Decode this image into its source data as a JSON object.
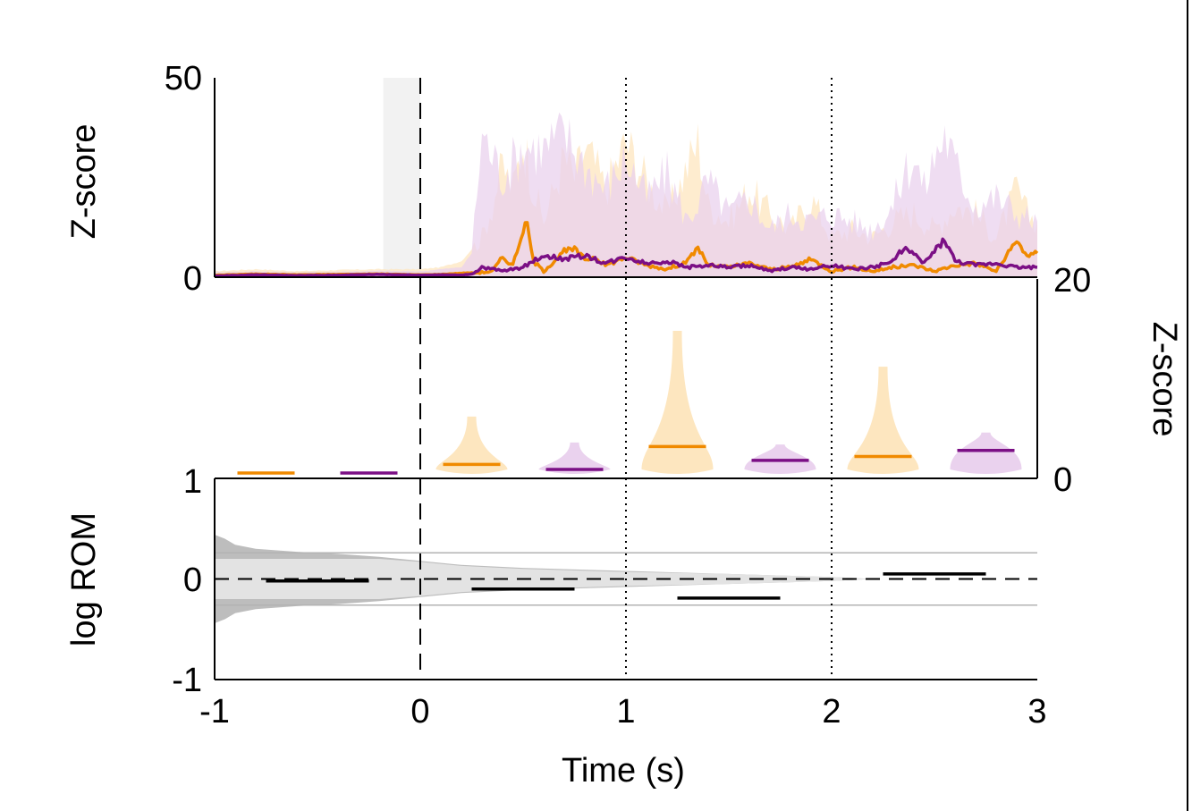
{
  "chart_data": {
    "type": "composite",
    "x_axis": {
      "label": "Time (s)",
      "range": [
        -1,
        3
      ],
      "ticks": [
        -1,
        0,
        1,
        2,
        3
      ],
      "tick_labels": [
        "-1",
        "0",
        "1",
        "2",
        "3"
      ],
      "event_line": {
        "x": 0,
        "style": "dashed"
      },
      "boundary_lines": [
        {
          "x": 1,
          "style": "dotted"
        },
        {
          "x": 2,
          "style": "dotted"
        }
      ]
    },
    "panels": [
      {
        "name": "z-score-traces",
        "type": "line",
        "ylabel": "Z-score",
        "ylim": [
          0,
          50
        ],
        "ytick_labels": [
          "0",
          "50"
        ],
        "shaded_window": {
          "x0": -0.18,
          "x1": 0.0,
          "color": "#f2f2f2"
        },
        "series": [
          {
            "name": "orange",
            "color": "#f08a00",
            "band_color": "#fde6bf",
            "x": [
              -1.0,
              -0.8,
              -0.6,
              -0.4,
              -0.2,
              0.0,
              0.1,
              0.2,
              0.3,
              0.35,
              0.4,
              0.45,
              0.5,
              0.52,
              0.55,
              0.6,
              0.7,
              0.75,
              0.8,
              0.85,
              0.9,
              1.0,
              1.1,
              1.2,
              1.3,
              1.35,
              1.4,
              1.5,
              1.6,
              1.7,
              1.8,
              1.9,
              2.0,
              2.1,
              2.2,
              2.3,
              2.4,
              2.5,
              2.6,
              2.7,
              2.8,
              2.9,
              2.95,
              3.0
            ],
            "values": [
              0.5,
              0.8,
              0.6,
              0.7,
              0.8,
              0.6,
              0.7,
              1.0,
              1.2,
              1.5,
              5.0,
              3.0,
              12.0,
              13.0,
              4.0,
              1.5,
              6.5,
              7.0,
              4.5,
              5.0,
              3.0,
              5.0,
              3.0,
              2.0,
              4.0,
              7.5,
              3.0,
              2.5,
              3.5,
              2.0,
              2.5,
              4.5,
              1.5,
              2.5,
              1.5,
              2.5,
              3.0,
              1.5,
              3.0,
              3.5,
              1.5,
              9.0,
              5.5,
              6.0
            ],
            "band_upper": [
              1.5,
              2.0,
              1.5,
              1.8,
              2.0,
              2.0,
              2.5,
              4.0,
              10.0,
              18.0,
              28.0,
              22.0,
              34.0,
              30.0,
              22.0,
              14.0,
              30.0,
              25.0,
              32.0,
              28.0,
              22.0,
              34.0,
              24.0,
              16.0,
              28.0,
              34.0,
              18.0,
              14.0,
              22.0,
              16.0,
              12.0,
              20.0,
              10.0,
              12.0,
              10.0,
              14.0,
              16.0,
              12.0,
              18.0,
              16.0,
              10.0,
              22.0,
              16.0,
              14.0
            ]
          },
          {
            "name": "purple",
            "color": "#7b0f85",
            "band_color": "#ead2ee",
            "x": [
              -1.0,
              -0.8,
              -0.6,
              -0.4,
              -0.2,
              0.0,
              0.1,
              0.2,
              0.25,
              0.3,
              0.4,
              0.5,
              0.6,
              0.7,
              0.8,
              0.9,
              1.0,
              1.1,
              1.2,
              1.3,
              1.4,
              1.5,
              1.6,
              1.7,
              1.8,
              1.9,
              2.0,
              2.1,
              2.2,
              2.3,
              2.35,
              2.4,
              2.45,
              2.5,
              2.55,
              2.6,
              2.7,
              2.8,
              2.9,
              3.0
            ],
            "values": [
              0.3,
              0.6,
              0.4,
              0.5,
              0.7,
              0.5,
              0.6,
              0.5,
              0.8,
              2.5,
              1.5,
              2.5,
              5.5,
              4.5,
              5.5,
              3.5,
              5.0,
              3.5,
              4.0,
              2.5,
              3.0,
              2.5,
              3.0,
              1.5,
              2.5,
              2.0,
              3.0,
              2.0,
              2.5,
              4.0,
              7.5,
              5.5,
              3.5,
              6.5,
              9.5,
              4.0,
              3.0,
              3.5,
              2.5,
              2.5
            ],
            "band_upper": [
              1.2,
              1.5,
              1.2,
              1.4,
              1.6,
              1.5,
              2.0,
              2.5,
              6.0,
              36.0,
              25.0,
              33.0,
              32.0,
              36.0,
              28.0,
              22.0,
              30.0,
              20.0,
              26.0,
              14.0,
              24.0,
              16.0,
              20.0,
              12.0,
              16.0,
              14.0,
              16.0,
              14.0,
              12.0,
              18.0,
              26.0,
              30.0,
              22.0,
              30.0,
              36.0,
              28.0,
              18.0,
              20.0,
              16.0,
              14.0
            ]
          }
        ]
      },
      {
        "name": "window-violins",
        "type": "violin",
        "ylabel": "Z-score",
        "ylim": [
          0,
          20
        ],
        "ytick_labels": [
          "0",
          "20"
        ],
        "y_axis_side": "right",
        "groups": [
          {
            "series": "orange",
            "x_center": -0.75,
            "median": 0.1,
            "max": 0.1,
            "color": "#f08a00",
            "fill": "#fde6bf"
          },
          {
            "series": "purple",
            "x_center": -0.25,
            "median": 0.1,
            "max": 0.1,
            "color": "#7b0f85",
            "fill": "#ead2ee"
          },
          {
            "series": "orange",
            "x_center": 0.25,
            "median": 1.4,
            "max": 6.2,
            "color": "#f08a00",
            "fill": "#fde6bf"
          },
          {
            "series": "purple",
            "x_center": 0.75,
            "median": 0.9,
            "max": 3.6,
            "color": "#7b0f85",
            "fill": "#ead2ee"
          },
          {
            "series": "orange",
            "x_center": 1.25,
            "median": 3.2,
            "max": 14.8,
            "color": "#f08a00",
            "fill": "#fde6bf"
          },
          {
            "series": "purple",
            "x_center": 1.75,
            "median": 1.8,
            "max": 3.4,
            "color": "#7b0f85",
            "fill": "#ead2ee"
          },
          {
            "series": "orange",
            "x_center": 2.25,
            "median": 2.2,
            "max": 11.2,
            "color": "#f08a00",
            "fill": "#fde6bf"
          },
          {
            "series": "purple",
            "x_center": 2.75,
            "median": 2.8,
            "max": 4.6,
            "color": "#7b0f85",
            "fill": "#ead2ee"
          }
        ]
      },
      {
        "name": "log-rom",
        "type": "line",
        "ylabel": "log ROM",
        "ylim": [
          -1,
          1
        ],
        "ytick_labels": [
          "-1",
          "0",
          "1"
        ],
        "reference_lines": [
          {
            "y": 0,
            "style": "dashed",
            "color": "#000000"
          },
          {
            "y": 0.26,
            "style": "solid",
            "color": "#b3b3b3"
          },
          {
            "y": -0.26,
            "style": "solid",
            "color": "#b3b3b3"
          }
        ],
        "null_band": {
          "x": [
            -1.0,
            -0.95,
            -0.9,
            -0.8,
            -0.6,
            -0.4,
            -0.2,
            0.0,
            0.2,
            0.5,
            1.0,
            1.5,
            2.0,
            2.2
          ],
          "outer": [
            0.44,
            0.4,
            0.34,
            0.3,
            0.27,
            0.25,
            0.22,
            0.18,
            0.14,
            0.11,
            0.08,
            0.05,
            0.02,
            0.0
          ],
          "inner": [
            0.2,
            0.2,
            0.2,
            0.2,
            0.2,
            0.2,
            0.2,
            0.17,
            0.13,
            0.1,
            0.07,
            0.05,
            0.02,
            0.0
          ]
        },
        "segments": [
          {
            "x0": -0.75,
            "x1": -0.25,
            "value": -0.02
          },
          {
            "x0": 0.25,
            "x1": 0.75,
            "value": -0.1
          },
          {
            "x0": 1.25,
            "x1": 1.75,
            "value": -0.19
          },
          {
            "x0": 2.25,
            "x1": 2.75,
            "value": 0.05
          }
        ]
      }
    ]
  }
}
